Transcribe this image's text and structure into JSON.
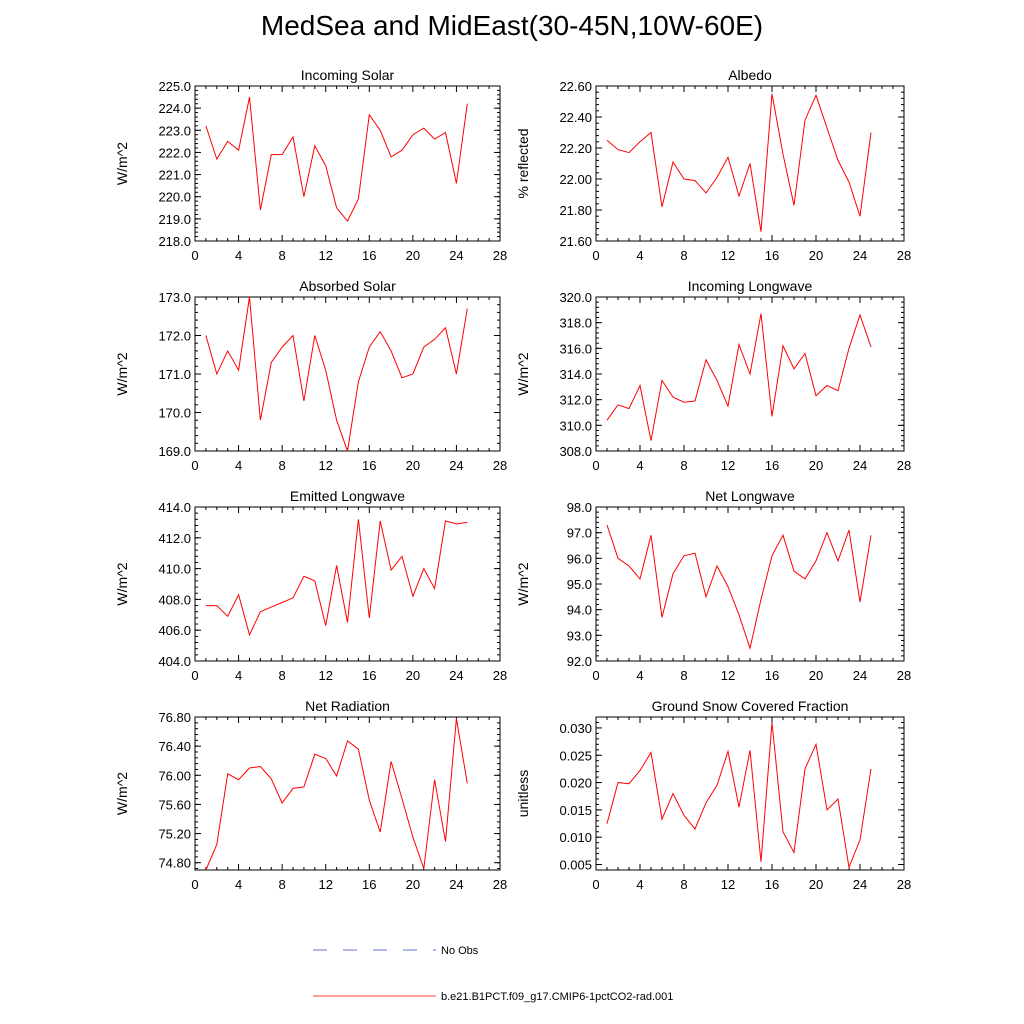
{
  "page_title": "MedSea and MidEast(30-45N,10W-60E)",
  "colors": {
    "model_line": "#ff0000",
    "obs_line": "#3344cc",
    "axis": "#000000"
  },
  "legend": {
    "obs_label": "No Obs",
    "model_label": "b.e21.B1PCT.f09_g17.CMIP6-1pctCO2-rad.001"
  },
  "chart_data": [
    {
      "type": "line",
      "title": "Incoming Solar",
      "ylabel": "W/m^2",
      "xlim": [
        0,
        28
      ],
      "ylim": [
        218.0,
        225.0
      ],
      "x_ticks": [
        0,
        4,
        8,
        12,
        16,
        20,
        24,
        28
      ],
      "y_ticks": [
        "218.0",
        "219.0",
        "220.0",
        "221.0",
        "222.0",
        "223.0",
        "224.0",
        "225.0"
      ],
      "series": [
        {
          "name": "b.e21.B1PCT.f09_g17.CMIP6-1pctCO2-rad.001",
          "x": [
            1,
            2,
            3,
            4,
            5,
            6,
            7,
            8,
            9,
            10,
            11,
            12,
            13,
            14,
            15,
            16,
            17,
            18,
            19,
            20,
            21,
            22,
            23,
            24,
            25
          ],
          "y": [
            223.2,
            221.7,
            222.5,
            222.1,
            224.5,
            219.4,
            221.9,
            221.9,
            222.7,
            220.0,
            222.3,
            221.4,
            219.5,
            218.9,
            219.9,
            223.7,
            223.0,
            221.8,
            222.1,
            222.8,
            223.1,
            222.6,
            222.9,
            220.6,
            224.2
          ]
        }
      ]
    },
    {
      "type": "line",
      "title": "Albedo",
      "ylabel": "% reflected",
      "xlim": [
        0,
        28
      ],
      "ylim": [
        21.6,
        22.6
      ],
      "x_ticks": [
        0,
        4,
        8,
        12,
        16,
        20,
        24,
        28
      ],
      "y_ticks": [
        "21.60",
        "21.80",
        "22.00",
        "22.20",
        "22.40",
        "22.60"
      ],
      "series": [
        {
          "name": "b.e21.B1PCT.f09_g17.CMIP6-1pctCO2-rad.001",
          "x": [
            1,
            2,
            3,
            4,
            5,
            6,
            7,
            8,
            9,
            10,
            11,
            12,
            13,
            14,
            15,
            16,
            17,
            18,
            19,
            20,
            21,
            22,
            23,
            24,
            25
          ],
          "y": [
            22.25,
            22.19,
            22.17,
            22.24,
            22.3,
            21.82,
            22.11,
            22.0,
            21.99,
            21.91,
            22.01,
            22.14,
            21.89,
            22.1,
            21.66,
            22.55,
            22.16,
            21.83,
            22.38,
            22.54,
            22.33,
            22.12,
            21.98,
            21.76,
            22.3
          ]
        }
      ]
    },
    {
      "type": "line",
      "title": "Absorbed Solar",
      "ylabel": "W/m^2",
      "xlim": [
        0,
        28
      ],
      "ylim": [
        169.0,
        173.0
      ],
      "x_ticks": [
        0,
        4,
        8,
        12,
        16,
        20,
        24,
        28
      ],
      "y_ticks": [
        "169.0",
        "170.0",
        "171.0",
        "172.0",
        "173.0"
      ],
      "series": [
        {
          "name": "b.e21.B1PCT.f09_g17.CMIP6-1pctCO2-rad.001",
          "x": [
            1,
            2,
            3,
            4,
            5,
            6,
            7,
            8,
            9,
            10,
            11,
            12,
            13,
            14,
            15,
            16,
            17,
            18,
            19,
            20,
            21,
            22,
            23,
            24,
            25
          ],
          "y": [
            172.0,
            171.0,
            171.6,
            171.1,
            173.0,
            169.8,
            171.3,
            171.7,
            172.0,
            170.3,
            172.0,
            171.1,
            169.8,
            169.0,
            170.8,
            171.7,
            172.1,
            171.6,
            170.9,
            171.0,
            171.7,
            171.9,
            172.2,
            171.0,
            172.7
          ]
        }
      ]
    },
    {
      "type": "line",
      "title": "Incoming Longwave",
      "ylabel": "W/m^2",
      "xlim": [
        0,
        28
      ],
      "ylim": [
        308.0,
        320.0
      ],
      "x_ticks": [
        0,
        4,
        8,
        12,
        16,
        20,
        24,
        28
      ],
      "y_ticks": [
        "308.0",
        "310.0",
        "312.0",
        "314.0",
        "316.0",
        "318.0",
        "320.0"
      ],
      "series": [
        {
          "name": "b.e21.B1PCT.f09_g17.CMIP6-1pctCO2-rad.001",
          "x": [
            1,
            2,
            3,
            4,
            5,
            6,
            7,
            8,
            9,
            10,
            11,
            12,
            13,
            14,
            15,
            16,
            17,
            18,
            19,
            20,
            21,
            22,
            23,
            24,
            25
          ],
          "y": [
            310.4,
            311.6,
            311.3,
            313.1,
            308.8,
            313.5,
            312.2,
            311.8,
            311.9,
            315.1,
            313.5,
            311.5,
            316.3,
            314.0,
            318.7,
            310.7,
            316.2,
            314.4,
            315.6,
            312.3,
            313.1,
            312.7,
            316.0,
            318.6,
            316.1
          ]
        }
      ]
    },
    {
      "type": "line",
      "title": "Emitted Longwave",
      "ylabel": "W/m^2",
      "xlim": [
        0,
        28
      ],
      "ylim": [
        404.0,
        414.0
      ],
      "x_ticks": [
        0,
        4,
        8,
        12,
        16,
        20,
        24,
        28
      ],
      "y_ticks": [
        "404.0",
        "406.0",
        "408.0",
        "410.0",
        "412.0",
        "414.0"
      ],
      "series": [
        {
          "name": "b.e21.B1PCT.f09_g17.CMIP6-1pctCO2-rad.001",
          "x": [
            1,
            2,
            3,
            4,
            5,
            6,
            7,
            8,
            9,
            10,
            11,
            12,
            13,
            14,
            15,
            16,
            17,
            18,
            19,
            20,
            21,
            22,
            23,
            24,
            25
          ],
          "y": [
            407.6,
            407.6,
            406.9,
            408.3,
            405.7,
            407.2,
            407.5,
            407.8,
            408.1,
            409.5,
            409.2,
            406.3,
            410.2,
            406.5,
            413.2,
            406.8,
            413.1,
            409.9,
            410.8,
            408.2,
            410.0,
            408.7,
            413.1,
            412.9,
            413.0
          ]
        }
      ]
    },
    {
      "type": "line",
      "title": "Net Longwave",
      "ylabel": "W/m^2",
      "xlim": [
        0,
        28
      ],
      "ylim": [
        92.0,
        98.0
      ],
      "x_ticks": [
        0,
        4,
        8,
        12,
        16,
        20,
        24,
        28
      ],
      "y_ticks": [
        "92.0",
        "93.0",
        "94.0",
        "95.0",
        "96.0",
        "97.0",
        "98.0"
      ],
      "series": [
        {
          "name": "b.e21.B1PCT.f09_g17.CMIP6-1pctCO2-rad.001",
          "x": [
            1,
            2,
            3,
            4,
            5,
            6,
            7,
            8,
            9,
            10,
            11,
            12,
            13,
            14,
            15,
            16,
            17,
            18,
            19,
            20,
            21,
            22,
            23,
            24,
            25
          ],
          "y": [
            97.3,
            96.0,
            95.7,
            95.2,
            96.9,
            93.7,
            95.4,
            96.1,
            96.2,
            94.5,
            95.7,
            94.9,
            93.8,
            92.5,
            94.4,
            96.1,
            96.9,
            95.5,
            95.2,
            95.9,
            97.0,
            95.9,
            97.1,
            94.3,
            96.9
          ]
        }
      ]
    },
    {
      "type": "line",
      "title": "Net Radiation",
      "ylabel": "W/m^2",
      "xlim": [
        0,
        28
      ],
      "ylim": [
        74.7,
        76.8
      ],
      "x_ticks": [
        0,
        4,
        8,
        12,
        16,
        20,
        24,
        28
      ],
      "y_ticks": [
        "74.80",
        "75.20",
        "75.60",
        "76.00",
        "76.40",
        "76.80"
      ],
      "y_tick_values": [
        74.8,
        75.2,
        75.6,
        76.0,
        76.4,
        76.8
      ],
      "series": [
        {
          "name": "b.e21.B1PCT.f09_g17.CMIP6-1pctCO2-rad.001",
          "x": [
            1,
            2,
            3,
            4,
            5,
            6,
            7,
            8,
            9,
            10,
            11,
            12,
            13,
            14,
            15,
            16,
            17,
            18,
            19,
            20,
            21,
            22,
            23,
            24,
            25
          ],
          "y": [
            74.7,
            75.05,
            76.02,
            75.94,
            76.1,
            76.12,
            75.95,
            75.62,
            75.82,
            75.84,
            76.29,
            76.23,
            75.99,
            76.47,
            76.36,
            75.66,
            75.22,
            76.19,
            75.68,
            75.15,
            74.72,
            75.94,
            75.09,
            76.78,
            75.89
          ]
        }
      ]
    },
    {
      "type": "line",
      "title": "Ground Snow Covered Fraction",
      "ylabel": "unitless",
      "xlim": [
        0,
        28
      ],
      "ylim": [
        0.004,
        0.032
      ],
      "x_ticks": [
        0,
        4,
        8,
        12,
        16,
        20,
        24,
        28
      ],
      "y_ticks": [
        "0.005",
        "0.010",
        "0.015",
        "0.020",
        "0.025",
        "0.030"
      ],
      "y_tick_values": [
        0.005,
        0.01,
        0.015,
        0.02,
        0.025,
        0.03
      ],
      "series": [
        {
          "name": "b.e21.B1PCT.f09_g17.CMIP6-1pctCO2-rad.001",
          "x": [
            1,
            2,
            3,
            4,
            5,
            6,
            7,
            8,
            9,
            10,
            11,
            12,
            13,
            14,
            15,
            16,
            17,
            18,
            19,
            20,
            21,
            22,
            23,
            24,
            25
          ],
          "y": [
            0.0125,
            0.02,
            0.0198,
            0.0222,
            0.0255,
            0.0133,
            0.018,
            0.014,
            0.0115,
            0.0163,
            0.0195,
            0.0257,
            0.0155,
            0.0259,
            0.0055,
            0.031,
            0.011,
            0.0072,
            0.0225,
            0.027,
            0.015,
            0.017,
            0.0045,
            0.0095,
            0.0225
          ]
        }
      ]
    }
  ]
}
